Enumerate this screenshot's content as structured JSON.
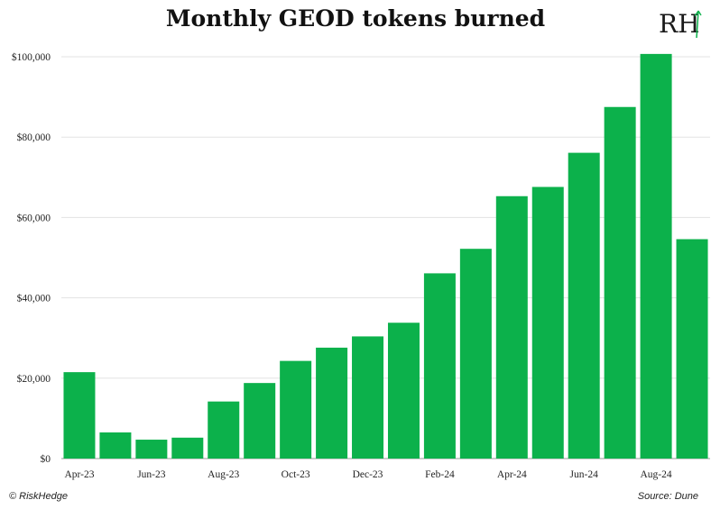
{
  "chart_data": {
    "type": "bar",
    "title": "Monthly GEOD tokens burned",
    "categories": [
      "Apr-23",
      "May-23",
      "Jun-23",
      "Jul-23",
      "Aug-23",
      "Sep-23",
      "Oct-23",
      "Nov-23",
      "Dec-23",
      "Jan-24",
      "Feb-24",
      "Mar-24",
      "Apr-24",
      "May-24",
      "Jun-24",
      "Jul-24",
      "Aug-24",
      "Sep-24"
    ],
    "x_tick_labels": [
      "Apr-23",
      "Jun-23",
      "Aug-23",
      "Oct-23",
      "Dec-23",
      "Feb-24",
      "Apr-24",
      "Jun-24",
      "Aug-24"
    ],
    "values": [
      21500,
      6500,
      4700,
      5200,
      14200,
      18800,
      24300,
      27600,
      30400,
      33800,
      46100,
      52200,
      65300,
      67600,
      76100,
      87500,
      100700,
      54600
    ],
    "ylim": [
      0,
      100000
    ],
    "y_ticks": [
      "$0",
      "$20,000",
      "$40,000",
      "$60,000",
      "$80,000",
      "$100,000"
    ],
    "y_tick_values": [
      0,
      20000,
      40000,
      60000,
      80000,
      100000
    ],
    "bar_color": "#0cb14b",
    "grid": true,
    "xlabel": "",
    "ylabel": ""
  },
  "logo_text": "RH",
  "footer": {
    "brand": "© RiskHedge",
    "source": "Source: Dune"
  }
}
